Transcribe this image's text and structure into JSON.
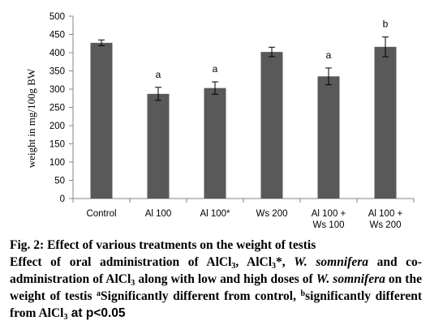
{
  "chart_data": {
    "type": "bar",
    "categories": [
      [
        "Control"
      ],
      [
        "Al 100"
      ],
      [
        "Al 100*"
      ],
      [
        "Ws 200"
      ],
      [
        "Al 100 +",
        "Ws 100"
      ],
      [
        "Al 100 +",
        "Ws 200"
      ]
    ],
    "values": [
      427,
      287,
      303,
      402,
      335,
      416
    ],
    "errors": [
      8,
      18,
      17,
      13,
      23,
      27
    ],
    "annotations": [
      "",
      "a",
      "a",
      "",
      "a",
      "b"
    ],
    "ylabel": "weight in mg/100g BW",
    "ylim": [
      0,
      500
    ],
    "yticks": [
      0,
      50,
      100,
      150,
      200,
      250,
      300,
      350,
      400,
      450,
      500
    ],
    "grid": false,
    "bar_color": "#595959"
  },
  "caption": {
    "fig_label": "Fig. 2:",
    "fig_title": "Effect of various treatments on the weight of testis",
    "t1": "Effect of oral administration of AlCl",
    "s1": "3",
    "t2": ", AlCl",
    "s2": "3",
    "t3": "*, ",
    "i1": "W. somnifera",
    "t4": " and co-administration of AlCl",
    "s3": "3",
    "t5": " along with low and high doses of ",
    "i2": "W. somnifera",
    "t6": " on the weight of testis ",
    "sup1": "a",
    "t7": "Significantly different from control, ",
    "sup2": "b",
    "t8": "significantly different from AlCl",
    "s4": "3",
    "t9": " at p<0.05"
  }
}
